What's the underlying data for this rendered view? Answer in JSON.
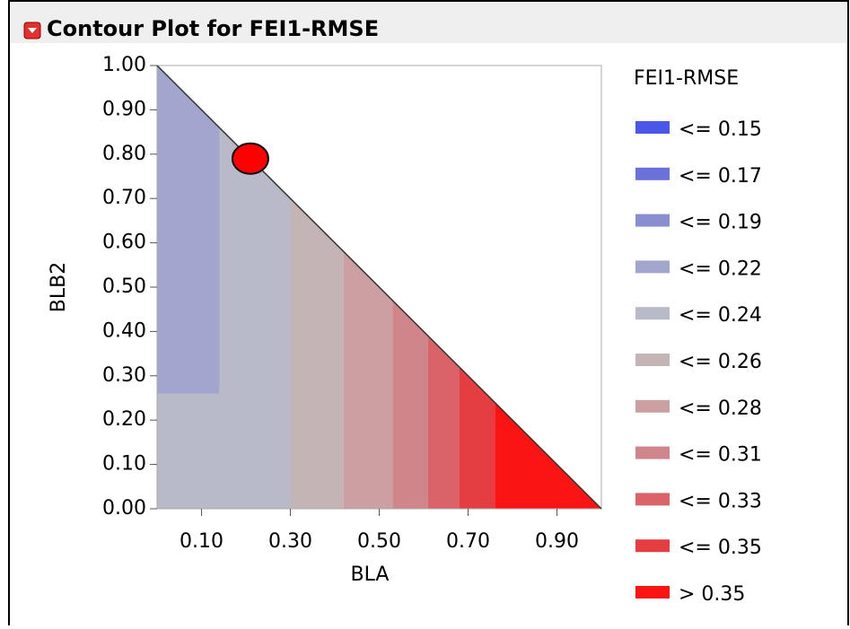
{
  "chart_data": {
    "type": "contour",
    "title": "Contour Plot for FEI1-RMSE",
    "x_label": "BLA",
    "y_label": "BLB2",
    "legend_title": "FEI1-RMSE",
    "xlim": [
      0,
      1
    ],
    "ylim": [
      0,
      1
    ],
    "xticks": [
      {
        "value": 0.1,
        "label": "0.10"
      },
      {
        "value": 0.3,
        "label": "0.30"
      },
      {
        "value": 0.5,
        "label": "0.50"
      },
      {
        "value": 0.7,
        "label": "0.70"
      },
      {
        "value": 0.9,
        "label": "0.90"
      }
    ],
    "yticks": [
      {
        "value": 0,
        "label": "0.00"
      },
      {
        "value": 0.1,
        "label": "0.10"
      },
      {
        "value": 0.2,
        "label": "0.20"
      },
      {
        "value": 0.3,
        "label": "0.30"
      },
      {
        "value": 0.4,
        "label": "0.40"
      },
      {
        "value": 0.5,
        "label": "0.50"
      },
      {
        "value": 0.6,
        "label": "0.60"
      },
      {
        "value": 0.7,
        "label": "0.70"
      },
      {
        "value": 0.8,
        "label": "0.80"
      },
      {
        "value": 0.9,
        "label": "0.90"
      },
      {
        "value": 1,
        "label": "1.00"
      }
    ],
    "series": [
      {
        "name": "<= 0.15",
        "color": "#4b57e8",
        "region": null
      },
      {
        "name": "<= 0.17",
        "color": "#6a71d8",
        "region": null
      },
      {
        "name": "<= 0.19",
        "color": "#888ed0",
        "region": null
      },
      {
        "name": "<= 0.24",
        "color": "#b8b9c9",
        "region": {
          "x": [
            0,
            0.3
          ],
          "y": [
            0,
            1
          ]
        }
      },
      {
        "name": "<= 0.22",
        "color": "#a2a5cd",
        "region": {
          "x": [
            0,
            0.14
          ],
          "y": [
            0.26,
            1
          ]
        }
      },
      {
        "name": "<= 0.26",
        "color": "#c5b4b6",
        "region": {
          "x": [
            0.3,
            0.42
          ],
          "y": [
            0,
            1
          ]
        }
      },
      {
        "name": "<= 0.28",
        "color": "#cc9fa2",
        "region": {
          "x": [
            0.42,
            0.53
          ],
          "y": [
            0,
            1
          ]
        }
      },
      {
        "name": "<= 0.31",
        "color": "#cf8589",
        "region": {
          "x": [
            0.53,
            0.61
          ],
          "y": [
            0,
            1
          ]
        }
      },
      {
        "name": "<= 0.33",
        "color": "#d96368",
        "region": {
          "x": [
            0.61,
            0.68
          ],
          "y": [
            0,
            1
          ]
        }
      },
      {
        "name": "<= 0.35",
        "color": "#e43d42",
        "region": {
          "x": [
            0.68,
            0.76
          ],
          "y": [
            0,
            1
          ]
        }
      },
      {
        "name": "> 0.35",
        "color": "#fa1414",
        "region": {
          "x": [
            0.76,
            1
          ],
          "y": [
            0,
            1
          ]
        }
      }
    ],
    "legend_order": [
      0,
      1,
      2,
      4,
      3,
      5,
      6,
      7,
      8,
      9,
      10
    ],
    "point": {
      "x": 0.21,
      "y": 0.79,
      "color": "#ff0000"
    }
  }
}
